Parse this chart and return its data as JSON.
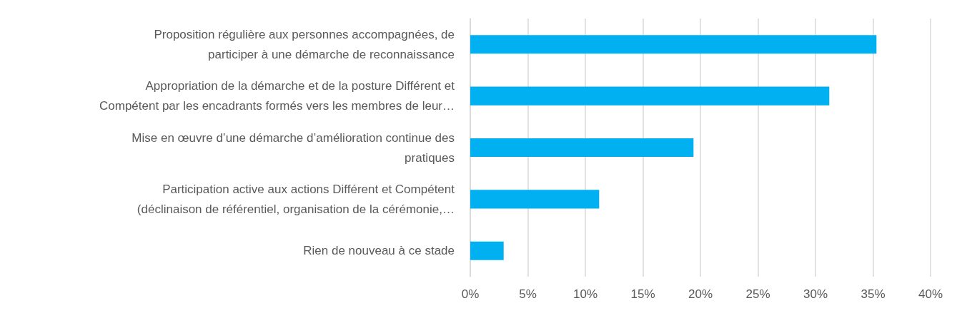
{
  "chart_data": {
    "type": "bar",
    "orientation": "horizontal",
    "categories": [
      "Proposition régulière aux personnes accompagnées, de\nparticiper à une démarche de reconnaissance",
      "Appropriation de la démarche et de la posture Différent et\nCompétent par les encadrants formés vers les membres de leur…",
      "Mise en œuvre d’une démarche d’amélioration continue des\npratiques",
      "Participation active aux actions Différent et Compétent\n(déclinaison de référentiel, organisation de la cérémonie,…",
      "Rien de nouveau à ce stade"
    ],
    "values": [
      35.3,
      31.2,
      19.4,
      11.2,
      2.9
    ],
    "color": "#00b0f0",
    "xlim": [
      0,
      40
    ],
    "xticks": [
      {
        "value": 0,
        "label": "0%"
      },
      {
        "value": 5,
        "label": "5%"
      },
      {
        "value": 10,
        "label": "10%"
      },
      {
        "value": 15,
        "label": "15%"
      },
      {
        "value": 20,
        "label": "20%"
      },
      {
        "value": 25,
        "label": "25%"
      },
      {
        "value": 30,
        "label": "30%"
      },
      {
        "value": 35,
        "label": "35%"
      },
      {
        "value": 40,
        "label": "40%"
      }
    ],
    "grid": "x"
  }
}
